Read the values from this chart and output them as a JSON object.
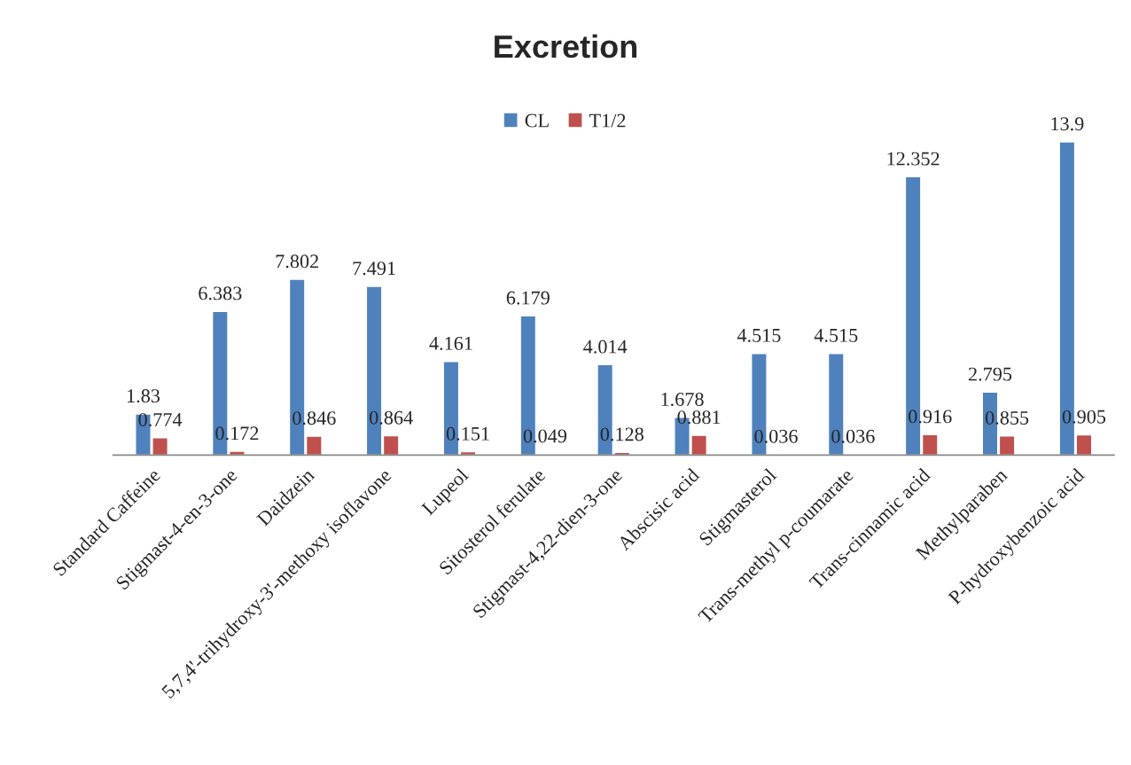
{
  "chart_data": {
    "type": "bar",
    "title": "Excretion",
    "categories": [
      "Standard Caffeine",
      "Stigmast-4-en-3-one",
      "Daidzein",
      "5,7,4'-trihydroxy-3'-methoxy isoflavone",
      "Lupeol",
      "Sitosterol ferulate",
      "Stigmast-4,22-dien-3-one",
      "Abscisic acid",
      "Stigmasterol",
      "Trans-methyl p-coumarate",
      "Trans-cinnamic acid",
      "Methylparaben",
      "P-hydroxybenzoic acid"
    ],
    "series": [
      {
        "name": "CL",
        "color": "#4f81bd",
        "values": [
          1.83,
          6.383,
          7.802,
          7.491,
          4.161,
          6.179,
          4.014,
          1.678,
          4.515,
          4.515,
          12.352,
          2.795,
          13.9
        ]
      },
      {
        "name": "T1/2",
        "color": "#c0504d",
        "values": [
          0.774,
          0.172,
          0.846,
          0.864,
          0.151,
          0.049,
          0.128,
          0.881,
          0.036,
          0.036,
          0.916,
          0.855,
          0.905
        ]
      }
    ],
    "data_labels": true,
    "legend": "top",
    "grid": false
  }
}
